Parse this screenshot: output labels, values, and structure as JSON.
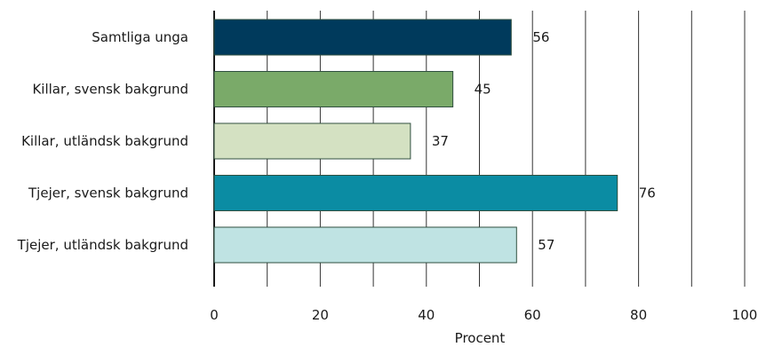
{
  "chart_data": {
    "type": "bar",
    "orientation": "horizontal",
    "categories": [
      "Samtliga unga",
      "Killar, svensk bakgrund",
      "Killar, utländsk bakgrund",
      "Tjejer, svensk bakgrund",
      "Tjejer, utländsk bakgrund"
    ],
    "values": [
      56,
      45,
      37,
      76,
      57
    ],
    "colors": [
      "#003a5c",
      "#7aaa69",
      "#d4e1c2",
      "#0b8ca3",
      "#bfe3e3"
    ],
    "xlabel": "Procent",
    "ylabel": "",
    "title": "",
    "xlim": [
      0,
      100
    ],
    "xticks": [
      0,
      20,
      40,
      60,
      80,
      100
    ],
    "grid": "vertical",
    "legend": "none",
    "data_labels": true
  }
}
